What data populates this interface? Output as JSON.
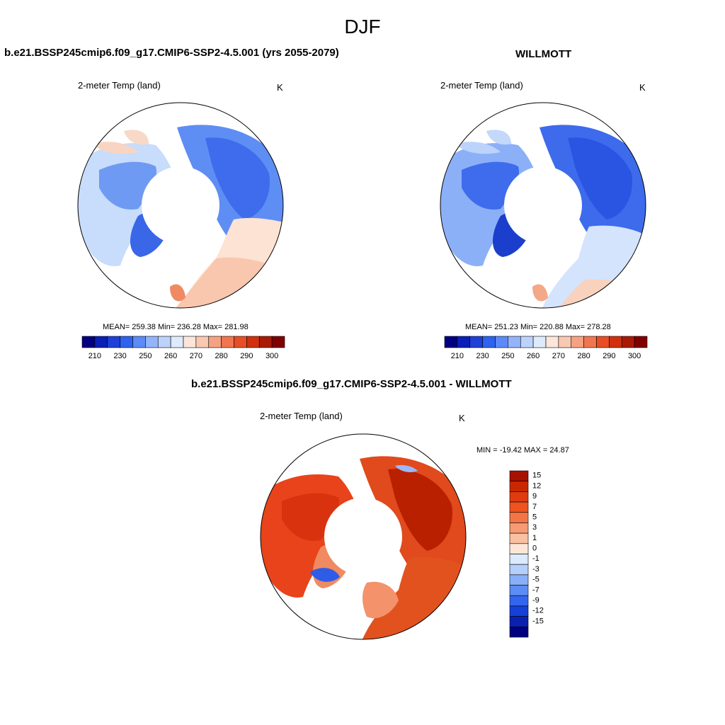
{
  "figure": {
    "title": "DJF"
  },
  "panels": [
    {
      "title": "b.e21.BSSP245cmip6.f09_g17.CMIP6-SSP2-4.5.001 (yrs 2055-2079)",
      "variable": "2-meter Temp (land)",
      "units": "K",
      "stats": "MEAN= 259.38  Min= 236.28  Max= 281.98"
    },
    {
      "title": "WILLMOTT",
      "variable": "2-meter Temp (land)",
      "units": "K",
      "stats": "MEAN= 251.23  Min= 220.88  Max= 278.28"
    },
    {
      "title": "b.e21.BSSP245cmip6.f09_g17.CMIP6-SSP2-4.5.001 - WILLMOTT",
      "variable": "2-meter Temp (land)",
      "units": "K",
      "stats": "MIN = -19.42 MAX =  24.87"
    }
  ],
  "abs_colorbar": {
    "ticks": [
      "210",
      "230",
      "250",
      "260",
      "270",
      "280",
      "290",
      "300"
    ],
    "colors": [
      "#000080",
      "#0A1FB5",
      "#1E40D8",
      "#2E62F0",
      "#5C8AF6",
      "#93B4FA",
      "#BDD2FB",
      "#DDEBFC",
      "#FCE6DB",
      "#F9C8B0",
      "#F5A283",
      "#F07650",
      "#E84E25",
      "#D0300E",
      "#A81A05",
      "#800000"
    ]
  },
  "diff_colorbar": {
    "ticks": [
      "15",
      "12",
      "9",
      "7",
      "5",
      "3",
      "1",
      "0",
      "-1",
      "-3",
      "-5",
      "-7",
      "-9",
      "-12",
      "-15"
    ],
    "colors": [
      "#A81000",
      "#C82800",
      "#DE3C0E",
      "#EE5320",
      "#F37545",
      "#F69A74",
      "#F9C0A4",
      "#FDE6D8",
      "#DCEAFD",
      "#B5CEFB",
      "#88AFF8",
      "#5C8CF4",
      "#3366EE",
      "#1640D8",
      "#0A20B0",
      "#000080"
    ]
  }
}
